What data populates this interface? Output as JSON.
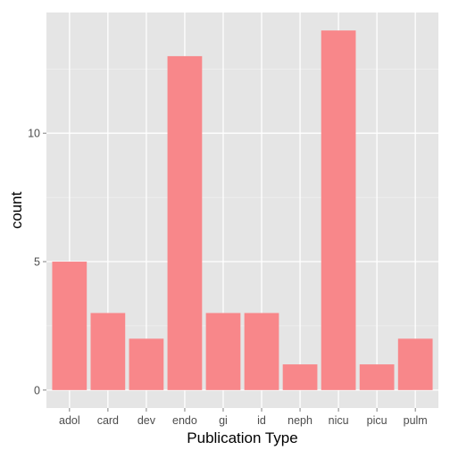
{
  "chart_data": {
    "type": "bar",
    "title": "",
    "xlabel": "Publication Type",
    "ylabel": "count",
    "categories": [
      "adol",
      "card",
      "dev",
      "endo",
      "gi",
      "id",
      "neph",
      "nicu",
      "picu",
      "pulm"
    ],
    "values": [
      5,
      3,
      2,
      13,
      3,
      3,
      1,
      14,
      1,
      2
    ],
    "ylim": [
      -0.7,
      14.7
    ],
    "yticks": [
      0,
      5,
      10
    ],
    "grid": true,
    "legend": "none"
  },
  "colors": {
    "bar": "#f8878a",
    "panel": "#e5e5e5",
    "grid_major": "#ffffff",
    "grid_minor": "#f2f2f2"
  }
}
